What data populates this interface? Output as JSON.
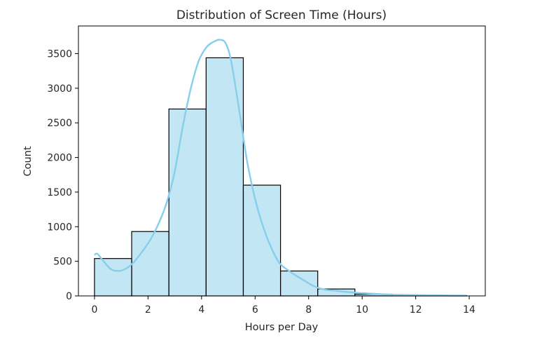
{
  "chart_data": {
    "type": "bar",
    "title": "Distribution of Screen Time (Hours)",
    "xlabel": "Hours per Day",
    "ylabel": "Count",
    "xlim": [
      -0.6,
      14.6
    ],
    "ylim": [
      0,
      3900
    ],
    "xticks": [
      0,
      2,
      4,
      6,
      8,
      10,
      12,
      14
    ],
    "yticks": [
      0,
      500,
      1000,
      1500,
      2000,
      2500,
      3000,
      3500
    ],
    "bin_edges": [
      0.0,
      1.39,
      2.78,
      4.17,
      5.56,
      6.95,
      8.34,
      9.73,
      11.12,
      12.51,
      13.9
    ],
    "counts": [
      540,
      930,
      2700,
      3440,
      1600,
      360,
      100,
      25,
      10,
      5
    ],
    "bar_color": "#87ceeb",
    "bar_edge_color": "#000000",
    "kde": {
      "color": "#87ceeb",
      "x": [
        0.0,
        0.1,
        0.3,
        0.6,
        0.9,
        1.2,
        1.5,
        1.8,
        2.1,
        2.4,
        2.7,
        3.0,
        3.3,
        3.6,
        3.9,
        4.2,
        4.5,
        4.7,
        4.9,
        5.1,
        5.4,
        5.7,
        6.0,
        6.3,
        6.6,
        6.9,
        7.2,
        7.5,
        7.8,
        8.1,
        8.4,
        8.7,
        9.0,
        9.5,
        10.0,
        10.5,
        11.0,
        11.5,
        12.0,
        12.5,
        13.0,
        13.5,
        13.9
      ],
      "y": [
        590,
        610,
        520,
        390,
        360,
        400,
        500,
        650,
        820,
        1050,
        1350,
        1800,
        2450,
        3000,
        3400,
        3600,
        3680,
        3700,
        3650,
        3400,
        2700,
        1950,
        1400,
        1000,
        700,
        480,
        380,
        300,
        230,
        160,
        110,
        85,
        75,
        55,
        40,
        30,
        20,
        15,
        12,
        10,
        8,
        6,
        5
      ]
    },
    "grid": false,
    "legend": "none"
  }
}
